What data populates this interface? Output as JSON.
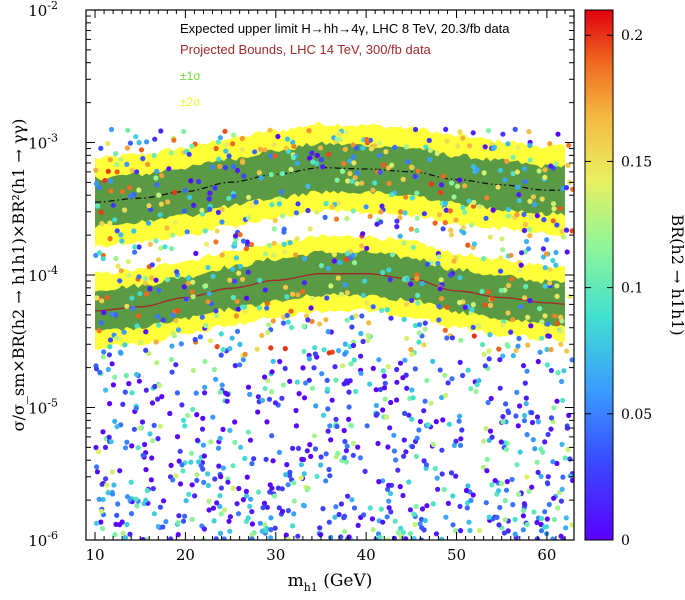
{
  "chart_data": {
    "type": "scatter",
    "title": "",
    "xlabel": "m_h1 (GeV)",
    "xlabel_main": "m",
    "xlabel_sub": "h1",
    "xlabel_unit": " (GeV)",
    "ylabel": "σ/σ_sm×BR(h2 → h1h1)×BR²(h1 → γγ)",
    "xlim": [
      9,
      63
    ],
    "ylim_log10": [
      -6,
      -2
    ],
    "x_ticks": [
      10,
      20,
      30,
      40,
      50,
      60
    ],
    "x_tick_labels": [
      "10",
      "20",
      "30",
      "40",
      "50",
      "60"
    ],
    "y_ticks_log10": [
      -6,
      -5,
      -4,
      -3,
      -2
    ],
    "y_tick_bases": [
      "10",
      "10",
      "10",
      "10",
      "10"
    ],
    "y_tick_exps": [
      "-6",
      "-5",
      "-4",
      "-3",
      "-2"
    ],
    "legend": {
      "expected": "Expected upper limit H→hh→4γ, LHC 8 TeV, 20.3/fb data",
      "projected": "Projected Bounds, LHC 14 TeV, 300/fb data",
      "sigma1": "±1σ",
      "sigma2": "±2σ"
    },
    "colors": {
      "band1": "#5a9a45",
      "band2": "#ffff3a",
      "expected_line": "#111111",
      "projected_line": "#a02828",
      "projected_text": "#a52a2a",
      "sigma1_text": "#7ad43a",
      "sigma2_text": "#f2f23a"
    },
    "series": [
      {
        "name": "Expected upper limit (8 TeV, 20.3/fb)",
        "x": [
          10,
          15,
          20,
          25,
          30,
          35,
          40,
          45,
          50,
          55,
          60,
          62
        ],
        "y_log10": [
          -3.45,
          -3.42,
          -3.37,
          -3.3,
          -3.24,
          -3.19,
          -3.2,
          -3.22,
          -3.28,
          -3.32,
          -3.36,
          -3.36
        ],
        "band1_halfwidth": 0.18,
        "band2_halfwidth": 0.33
      },
      {
        "name": "Projected bounds (14 TeV, 300/fb)",
        "x": [
          10,
          15,
          20,
          25,
          30,
          35,
          40,
          45,
          50,
          55,
          60,
          62
        ],
        "y_log10": [
          -4.27,
          -4.24,
          -4.17,
          -4.1,
          -4.04,
          -3.99,
          -3.99,
          -4.03,
          -4.12,
          -4.17,
          -4.21,
          -4.22
        ],
        "band1_halfwidth": 0.16,
        "band2_halfwidth": 0.28
      }
    ],
    "scatter_points": {
      "count": 1500,
      "x_range": [
        10,
        63
      ],
      "y_log10_range": [
        -6,
        -2.9
      ],
      "color_variable": "BR(h2 → h1h1)"
    },
    "colorbar": {
      "label": "BR(h2 → h1h1)",
      "range": [
        0,
        0.21
      ],
      "ticks": [
        0,
        0.05,
        0.1,
        0.15,
        0.2
      ],
      "tick_labels": [
        "0",
        "0.05",
        "0.1",
        "0.15",
        "0.2"
      ]
    }
  }
}
